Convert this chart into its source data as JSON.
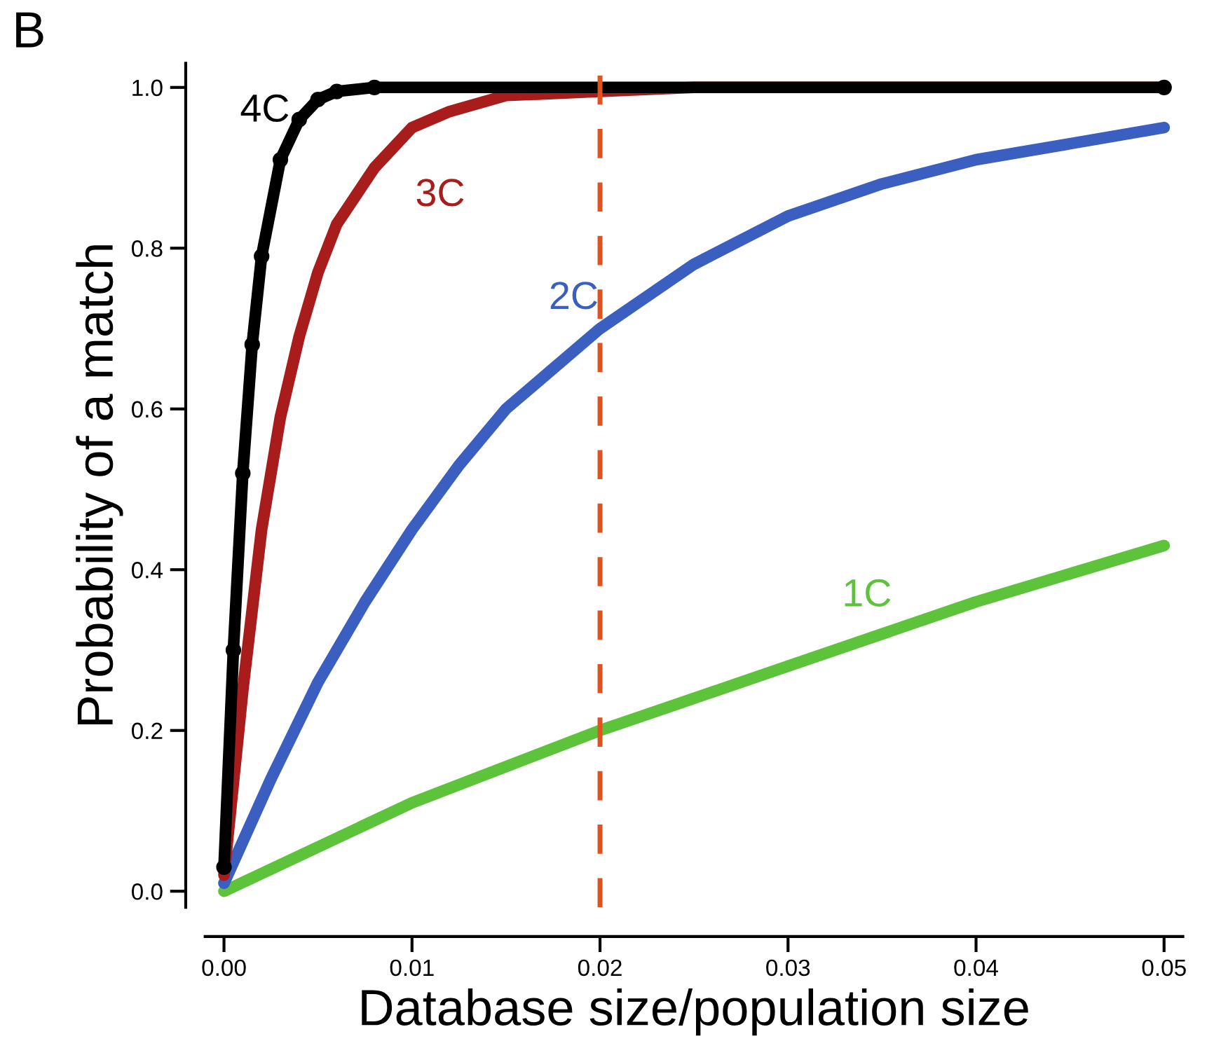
{
  "chart_data": {
    "type": "line",
    "xlabel": "Database size/population size",
    "ylabel": "Probability of a match",
    "xlim": [
      -0.001,
      0.051
    ],
    "ylim": [
      -0.02,
      1.03
    ],
    "xticks": [
      {
        "value": 0,
        "label": "0.00"
      },
      0.01,
      0.02,
      0.03,
      0.04,
      0.05
    ],
    "yticks": [
      {
        "value": 0,
        "label": "0.0"
      },
      0.2,
      0.4,
      0.6,
      0.8,
      {
        "value": 1,
        "label": "1.0"
      }
    ],
    "grid": false,
    "legend": false,
    "line_style": "solid",
    "series": [
      {
        "name": "4C",
        "color": "#000000",
        "marker": "circle",
        "x": [
          0,
          0.0005,
          0.001,
          0.0015,
          0.002,
          0.003,
          0.004,
          0.005,
          0.006,
          0.008,
          0.05
        ],
        "values": [
          0.03,
          0.3,
          0.52,
          0.68,
          0.79,
          0.91,
          0.96,
          0.985,
          0.995,
          1.0,
          1.0
        ]
      },
      {
        "name": "3C",
        "color": "#a81c1c",
        "marker": "none",
        "x": [
          0,
          0.001,
          0.002,
          0.003,
          0.004,
          0.005,
          0.006,
          0.008,
          0.01,
          0.012,
          0.015,
          0.02,
          0.025,
          0.05
        ],
        "values": [
          0.02,
          0.25,
          0.45,
          0.59,
          0.69,
          0.77,
          0.83,
          0.9,
          0.95,
          0.97,
          0.99,
          0.995,
          1.0,
          1.0
        ]
      },
      {
        "name": "2C",
        "color": "#3a5fc0",
        "marker": "none",
        "x": [
          0,
          0.0025,
          0.005,
          0.0075,
          0.01,
          0.0125,
          0.015,
          0.0175,
          0.02,
          0.025,
          0.03,
          0.035,
          0.04,
          0.045,
          0.05
        ],
        "values": [
          0.01,
          0.14,
          0.26,
          0.36,
          0.45,
          0.53,
          0.6,
          0.65,
          0.7,
          0.78,
          0.84,
          0.88,
          0.91,
          0.93,
          0.95
        ]
      },
      {
        "name": "1C",
        "color": "#5cc33a",
        "marker": "none",
        "x": [
          0,
          0.01,
          0.02,
          0.03,
          0.04,
          0.05
        ],
        "values": [
          0.0,
          0.11,
          0.2,
          0.28,
          0.36,
          0.43
        ]
      }
    ],
    "ref_lines": [
      {
        "axis": "x",
        "value": 0.02,
        "color": "#e0531f",
        "line_style": "dashed"
      }
    ],
    "annotations": [
      "B"
    ]
  }
}
